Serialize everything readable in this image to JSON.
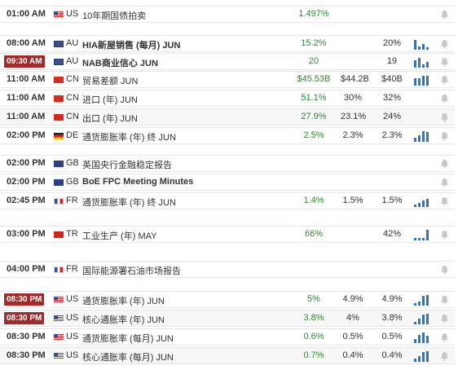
{
  "rows": [
    {
      "time": "01:00 AM",
      "cc": "US",
      "event": "10年期国债拍卖",
      "actual": "1.497%",
      "forecast": "",
      "previous": "",
      "chart": []
    },
    {
      "time": "08:00 AM",
      "cc": "AU",
      "event": "HIA新屋销售 (每月) JUN",
      "actual": "15.2%",
      "forecast": "",
      "previous": "20%",
      "chart": [
        9,
        3,
        5,
        2
      ]
    },
    {
      "time": "09:30 AM",
      "cc": "AU",
      "event": "NAB商业信心 JUN",
      "actual": "20",
      "forecast": "",
      "previous": "19",
      "chart": [
        7,
        9,
        3,
        5
      ]
    },
    {
      "time": "11:00 AM",
      "cc": "CN",
      "event": "贸易差额 JUN",
      "actual": "$45.53B",
      "forecast": "$44.2B",
      "previous": "$40B",
      "chart": [
        7,
        7,
        9,
        9
      ]
    },
    {
      "time": "11:00 AM",
      "cc": "CN",
      "event": "进口 (年) JUN",
      "actual": "51.1%",
      "forecast": "30%",
      "previous": "32%",
      "chart": []
    },
    {
      "time": "11:00 AM",
      "cc": "CN",
      "event": "出口 (年) JUN",
      "actual": "27.9%",
      "forecast": "23.1%",
      "previous": "24%",
      "chart": []
    },
    {
      "time": "02:00 PM",
      "cc": "DE",
      "event": "通货膨胀率 (年) 终 JUN",
      "actual": "2.5%",
      "forecast": "2.3%",
      "previous": "2.3%",
      "chart": [
        4,
        6,
        10,
        9
      ]
    },
    {
      "time": "02:00 PM",
      "cc": "GB",
      "event": "英国央行金融稳定报告",
      "actual": "",
      "forecast": "",
      "previous": "",
      "chart": []
    },
    {
      "time": "02:00 PM",
      "cc": "GB",
      "event": "BoE FPC Meeting Minutes",
      "actual": "",
      "forecast": "",
      "previous": "",
      "chart": []
    },
    {
      "time": "02:45 PM",
      "cc": "FR",
      "event": "通货膨胀率 (年) 终 JUN",
      "actual": "1.4%",
      "forecast": "1.5%",
      "previous": "1.5%",
      "chart": [
        2,
        4,
        6,
        8
      ]
    },
    {
      "time": "03:00 PM",
      "cc": "TR",
      "event": "工业生产 (年) MAY",
      "actual": "66%",
      "forecast": "",
      "previous": "42%",
      "chart": [
        2,
        2,
        2,
        10
      ]
    },
    {
      "time": "04:00 PM",
      "cc": "FR",
      "event": "国际能源署石油市场报告",
      "actual": "",
      "forecast": "",
      "previous": "",
      "chart": []
    },
    {
      "time": "08:30 PM",
      "cc": "US",
      "event": "通货膨胀率 (年) JUN",
      "actual": "5%",
      "forecast": "4.9%",
      "previous": "4.9%",
      "chart": [
        2,
        4,
        9,
        10
      ]
    },
    {
      "time": "08:30 PM",
      "cc": "US",
      "event": "核心通胀率 (年) JUN",
      "actual": "3.8%",
      "forecast": "4%",
      "previous": "3.8%",
      "chart": [
        2,
        5,
        9,
        10
      ]
    },
    {
      "time": "08:30 PM",
      "cc": "US",
      "event": "通货膨胀率 (每月) JUN",
      "actual": "0.6%",
      "forecast": "0.5%",
      "previous": "0.5%",
      "chart": [
        4,
        8,
        10,
        7
      ]
    },
    {
      "time": "08:30 PM",
      "cc": "US",
      "event": "核心通胀率 (每月) JUN",
      "actual": "0.7%",
      "forecast": "0.4%",
      "previous": "0.4%",
      "chart": [
        3,
        5,
        9,
        10
      ]
    }
  ],
  "colors": {
    "actual_green": "#2c8a2c",
    "time_badge_red": "#a12b2b",
    "chart_blue": "#3a73b0"
  }
}
